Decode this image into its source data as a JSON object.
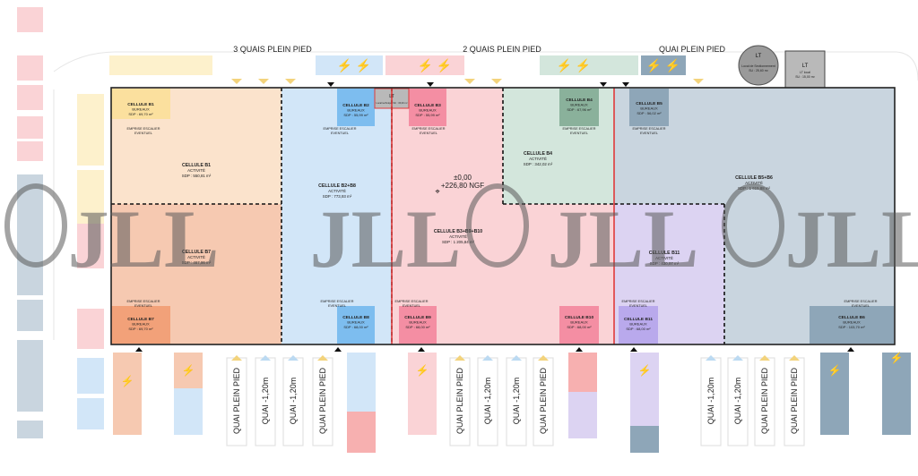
{
  "header_labels": {
    "quais_3": "3 QUAIS PLEIN PIED",
    "quais_2": "2 QUAIS PLEIN PIED",
    "quai_1": "QUAI PLEIN PIED"
  },
  "colors": {
    "b1": "#fbe3cc",
    "b2b8": "#d2e6f8",
    "b3b9b10": "#fad3d6",
    "b4": "#d3e6dc",
    "b5b6": "#c9d5df",
    "b7": "#f6c9b1",
    "b11": "#dcd3f2",
    "office_b1": "#fbe09e",
    "office_blue": "#7dbdef",
    "office_red": "#f48ea3",
    "office_green": "#8ab19b",
    "office_slate": "#8ea6b8",
    "office_orange": "#f2a179",
    "office_purple": "#b9a9ec",
    "red_line": "#e03a3a",
    "dock_arrow": "#f3d37c"
  },
  "cells": [
    {
      "id": "b1",
      "name": "CELLULE B1",
      "use": "ACTIVITÉ",
      "sdp": "SDP : 550,81 m²"
    },
    {
      "id": "b2b8",
      "name": "CELLULE B2+B8",
      "use": "ACTIVITÉ",
      "sdp": "SDP : 773,93 m²"
    },
    {
      "id": "b3b9b10",
      "name": "CELLULE B3+B9+B10",
      "use": "ACTIVITÉ",
      "sdp": "SDP : 1 205,84 m²"
    },
    {
      "id": "b4",
      "name": "CELLULE B4",
      "use": "ACTIVITÉ",
      "sdp": "SDP : 342,02 m²"
    },
    {
      "id": "b5b6",
      "name": "CELLULE B5+B6",
      "use": "ACTIVITÉ",
      "sdp": "SDP : 1 615,88 m²"
    },
    {
      "id": "b7",
      "name": "CELLULE B7",
      "use": "ACTIVITÉ",
      "sdp": "SDP : 467,86 m²"
    },
    {
      "id": "b11",
      "name": "CELLULE B11",
      "use": "ACTIVITÉ",
      "sdp": "SDP : 430,97 m²"
    }
  ],
  "offices": [
    {
      "id": "b1",
      "name": "CELLULE B1",
      "use": "BUREAUX",
      "sdp": "SDP : 69,70 m²"
    },
    {
      "id": "b2",
      "name": "CELLULE B2",
      "use": "BUREAUX",
      "sdp": "SDP : 55,99 m²"
    },
    {
      "id": "b3",
      "name": "CELLULE B3",
      "use": "BUREAUX",
      "sdp": "SDP : 55,99 m²"
    },
    {
      "id": "b4",
      "name": "CELLULE B4",
      "use": "BUREAUX",
      "sdp": "SDP : 67,96 m²"
    },
    {
      "id": "b5",
      "name": "CELLULE B5",
      "use": "BUREAUX",
      "sdp": "SDP : 56,02 m²"
    },
    {
      "id": "b7",
      "name": "CELLULE B7",
      "use": "BUREAUX",
      "sdp": "SDP : 69,70 m²"
    },
    {
      "id": "b8",
      "name": "CELLULE B8",
      "use": "BUREAUX",
      "sdp": "SDP : 68,00 m²"
    },
    {
      "id": "b9",
      "name": "CELLULE B9",
      "use": "BUREAUX",
      "sdp": "SDP : 68,00 m²"
    },
    {
      "id": "b10",
      "name": "CELLULE B10",
      "use": "BUREAUX",
      "sdp": "SDP : 68,00 m²"
    },
    {
      "id": "b11",
      "name": "CELLULE B11",
      "use": "BUREAUX",
      "sdp": "SDP : 68,00 m²"
    },
    {
      "id": "b6",
      "name": "CELLULE B6",
      "use": "BUREAUX",
      "sdp": "SDP : 103,70 m²"
    }
  ],
  "escalier": {
    "line1": "EMPRISE ESCALIER",
    "line2": "EVENTUEL"
  },
  "level": {
    "line1": "±0,00",
    "line2": "+226,80 NGF"
  },
  "lt_labels": {
    "title": "LT",
    "circle_sub1": "Local de Sectionnement",
    "circle_sub2": "SU : 25,60 m²",
    "box_sub1": "LT local",
    "box_sub2": "SU : 15,00 m²",
    "inner_sub": "Local technique SU : 15,00 m²"
  },
  "dock_labels": {
    "quai_plein_pied": "QUAI PLEIN PIED",
    "quai_moins": "QUAI -1,20m"
  },
  "dock_sequence": [
    "QUAI PLEIN PIED",
    "QUAI -1,20m",
    "QUAI -1,20m",
    "QUAI PLEIN PIED",
    "QUAI PLEIN PIED",
    "QUAI -1,20m",
    "QUAI -1,20m",
    "QUAI PLEIN PIED",
    "QUAI -1,20m",
    "QUAI -1,20m",
    "QUAI PLEIN PIED",
    "QUAI PLEIN PIED"
  ],
  "watermark": "JLL"
}
